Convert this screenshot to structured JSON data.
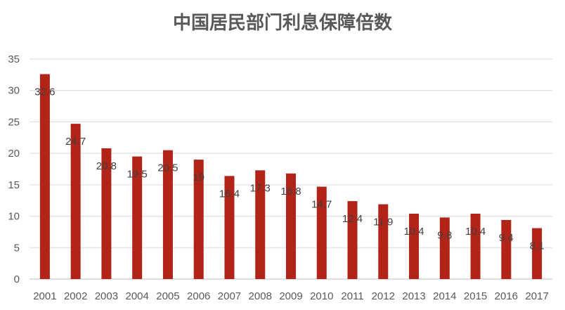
{
  "chart_data": {
    "type": "bar",
    "title": "中国居民部门利息保障倍数",
    "categories": [
      "2001",
      "2002",
      "2003",
      "2004",
      "2005",
      "2006",
      "2007",
      "2008",
      "2009",
      "2010",
      "2011",
      "2012",
      "2013",
      "2014",
      "2015",
      "2016",
      "2017"
    ],
    "values": [
      32.6,
      24.7,
      20.8,
      19.5,
      20.5,
      19,
      16.4,
      17.3,
      16.8,
      14.7,
      12.4,
      11.9,
      10.4,
      9.8,
      10.4,
      9.4,
      8.1
    ],
    "data_labels": [
      "32.6",
      "24.7",
      "20.8",
      "19.5",
      "20.5",
      "19",
      "16.4",
      "17.3",
      "16.8",
      "14.7",
      "12.4",
      "11.9",
      "10.4",
      "9.8",
      "10.4",
      "9.4",
      "8.1"
    ],
    "ylim": [
      0,
      35
    ],
    "yticks": [
      "0",
      "5",
      "10",
      "15",
      "20",
      "25",
      "30",
      "35"
    ],
    "grid": true,
    "bar_color": "#B22418",
    "grid_color": "#D9D9D9",
    "xlabel": "",
    "ylabel": ""
  }
}
